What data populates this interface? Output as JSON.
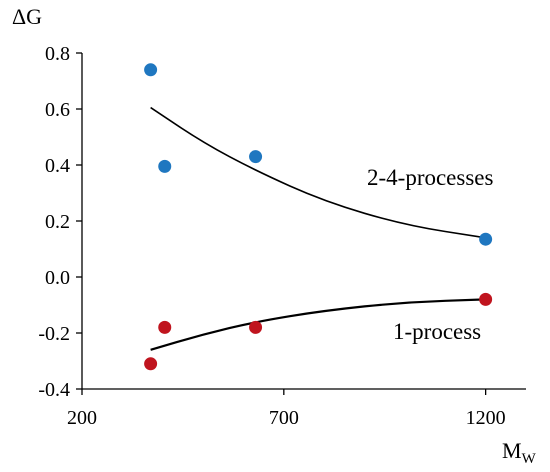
{
  "chart_data": {
    "type": "scatter",
    "ylabel": "ΔG",
    "xlabel": "M",
    "xlabel_sub": "W",
    "xlim": [
      200,
      1300
    ],
    "ylim": [
      -0.4,
      0.8
    ],
    "xticks": [
      "200",
      "700",
      "1200"
    ],
    "xtick_values": [
      200,
      700,
      1200
    ],
    "yticks": [
      "0.8",
      "0.6",
      "0.4",
      "0.2",
      "0.0",
      "-0.2",
      "-0.4"
    ],
    "ytick_values": [
      0.8,
      0.6,
      0.4,
      0.2,
      0.0,
      -0.2,
      -0.4
    ],
    "grid": false,
    "series": [
      {
        "name": "2-4-processes",
        "color": "#1f77c0",
        "x": [
          370,
          405,
          630,
          1200
        ],
        "y": [
          0.74,
          0.395,
          0.43,
          0.135
        ],
        "trend": {
          "x": [
            370,
            500,
            630,
            800,
            1000,
            1200
          ],
          "y": [
            0.605,
            0.48,
            0.38,
            0.27,
            0.185,
            0.14
          ]
        }
      },
      {
        "name": "1-process",
        "color": "#c0141e",
        "x": [
          370,
          405,
          630,
          1200
        ],
        "y": [
          -0.31,
          -0.18,
          -0.18,
          -0.08
        ],
        "trend": {
          "x": [
            370,
            500,
            630,
            800,
            1000,
            1200
          ],
          "y": [
            -0.26,
            -0.205,
            -0.16,
            -0.12,
            -0.09,
            -0.08
          ]
        }
      }
    ]
  }
}
